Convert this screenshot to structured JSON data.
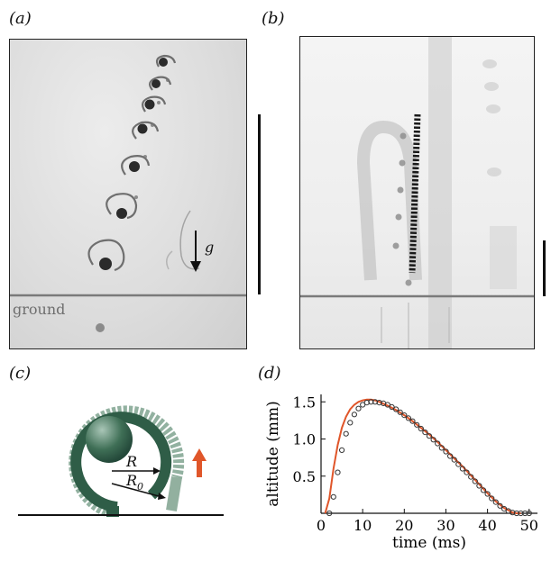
{
  "figure": {
    "panels": {
      "a": "(a)",
      "b": "(b)",
      "c": "(c)",
      "d": "(d)"
    },
    "photo_a": {
      "ground_label": "ground",
      "gravity_label": "g"
    },
    "diagram_c": {
      "r_label": "R",
      "r0_label": "R",
      "r0_subscript": "0",
      "colors": {
        "body": "#2f5d47",
        "shell": "#7fa38f",
        "arrow": "#e0562a"
      }
    },
    "colors": {
      "fit_curve": "#e0562a",
      "points": "#333333",
      "ground_line": "#7a7a7a"
    }
  },
  "chart_data": {
    "type": "scatter",
    "title": "",
    "xlabel": "time (ms)",
    "ylabel": "altitude (mm)",
    "xlim": [
      0,
      52
    ],
    "ylim": [
      0,
      1.6
    ],
    "xticks": [
      0,
      10,
      20,
      30,
      40,
      50
    ],
    "yticks": [
      0.5,
      1.0,
      1.5
    ],
    "xtick_labels": [
      "0",
      "10",
      "20",
      "30",
      "40",
      "50"
    ],
    "ytick_labels": [
      "0.5",
      "1.0",
      "1.5"
    ],
    "series": [
      {
        "kind": "points",
        "x": [
          2,
          3,
          4,
          5,
          6,
          7,
          8,
          9,
          10,
          11,
          12,
          13,
          14,
          15,
          16,
          17,
          18,
          19,
          20,
          21,
          22,
          23,
          24,
          25,
          26,
          27,
          28,
          29,
          30,
          31,
          32,
          33,
          34,
          35,
          36,
          37,
          38,
          39,
          40,
          41,
          42,
          43,
          44,
          45,
          46,
          47,
          48,
          49,
          50
        ],
        "y": [
          0.0,
          0.22,
          0.55,
          0.85,
          1.07,
          1.22,
          1.33,
          1.41,
          1.46,
          1.49,
          1.5,
          1.5,
          1.49,
          1.48,
          1.46,
          1.43,
          1.4,
          1.36,
          1.32,
          1.28,
          1.24,
          1.19,
          1.14,
          1.09,
          1.04,
          0.99,
          0.94,
          0.88,
          0.83,
          0.77,
          0.72,
          0.66,
          0.6,
          0.55,
          0.49,
          0.43,
          0.37,
          0.31,
          0.26,
          0.2,
          0.15,
          0.1,
          0.06,
          0.03,
          0.01,
          0.0,
          0.0,
          0.0,
          0.0
        ]
      },
      {
        "kind": "fit_line",
        "x": [
          1,
          2,
          3,
          4,
          5,
          6,
          7,
          8,
          9,
          10,
          11,
          12,
          13,
          14,
          16,
          18,
          20,
          22,
          24,
          26,
          28,
          30,
          32,
          34,
          36,
          38,
          40,
          42,
          44,
          46,
          47,
          48
        ],
        "y": [
          0.0,
          0.2,
          0.6,
          0.92,
          1.15,
          1.3,
          1.4,
          1.46,
          1.5,
          1.52,
          1.53,
          1.53,
          1.52,
          1.5,
          1.45,
          1.39,
          1.32,
          1.24,
          1.15,
          1.06,
          0.96,
          0.85,
          0.74,
          0.63,
          0.51,
          0.39,
          0.27,
          0.16,
          0.07,
          0.01,
          0.0,
          0.0
        ]
      }
    ]
  }
}
